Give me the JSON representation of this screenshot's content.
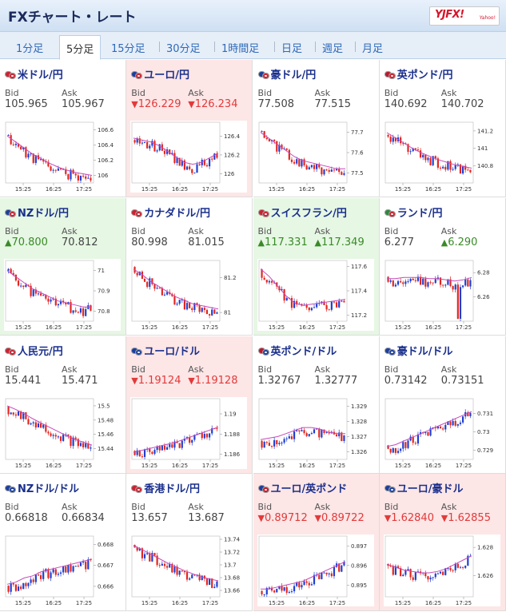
{
  "header": {
    "title": "FXチャート・レート",
    "logo": "YJFX!",
    "logo_sub": "Yahoo!"
  },
  "tabs": [
    "1分足",
    "5分足",
    "15分足",
    "30分足",
    "1時間足",
    "日足",
    "週足",
    "月足"
  ],
  "active_tab": 1,
  "labels": {
    "bid": "Bid",
    "ask": "Ask"
  },
  "colors": {
    "down_text": "#e23a3a",
    "up_text": "#3a8a28",
    "down_bg": "#fde6e6",
    "up_bg": "#e6f7e4",
    "candle_up": "#1f3fd1",
    "candle_down": "#e2261e",
    "ma_line": "#c64ab8"
  },
  "cards": [
    {
      "pair": "米ドル/円",
      "flags": [
        "#d02030",
        "#d02030"
      ],
      "state": "none",
      "bid": "105.965",
      "bid_dir": "none",
      "ask": "105.967",
      "ask_dir": "none",
      "chart_data": {
        "type": "candlestick",
        "x_ticks": [
          "15:25",
          "16:25",
          "17:25"
        ],
        "y_ticks": [
          "106.6",
          "106.4",
          "106.2",
          "106"
        ],
        "ylim": [
          105.9,
          106.7
        ],
        "trend": "down",
        "ma": [
          106.52,
          106.44,
          106.36,
          106.28,
          106.22,
          106.16,
          106.11,
          106.07,
          106.04,
          106.02,
          106.0
        ]
      }
    },
    {
      "pair": "ユーロ/円",
      "flags": [
        "#1a3fa0",
        "#d02030"
      ],
      "state": "down",
      "bid": "126.229",
      "bid_dir": "down",
      "ask": "126.234",
      "ask_dir": "down",
      "chart_data": {
        "type": "candlestick",
        "x_ticks": [
          "15:25",
          "16:25",
          "17:25"
        ],
        "y_ticks": [
          "126.4",
          "126.2",
          "126"
        ],
        "ylim": [
          125.9,
          126.55
        ],
        "trend": "down-up",
        "ma": [
          126.38,
          126.36,
          126.34,
          126.3,
          126.24,
          126.18,
          126.12,
          126.1,
          126.12,
          126.17,
          126.22
        ]
      }
    },
    {
      "pair": "豪ドル/円",
      "flags": [
        "#1a3fa0",
        "#d02030"
      ],
      "state": "none",
      "bid": "77.508",
      "bid_dir": "none",
      "ask": "77.515",
      "ask_dir": "none",
      "chart_data": {
        "type": "candlestick",
        "x_ticks": [
          "15:25",
          "16:25",
          "17:25"
        ],
        "y_ticks": [
          "77.7",
          "77.6",
          "77.5"
        ],
        "ylim": [
          77.45,
          77.75
        ],
        "trend": "down",
        "ma": [
          77.7,
          77.67,
          77.64,
          77.61,
          77.58,
          77.56,
          77.55,
          77.54,
          77.53,
          77.52,
          77.52
        ]
      }
    },
    {
      "pair": "英ポンド/円",
      "flags": [
        "#c0182c",
        "#d02030"
      ],
      "state": "none",
      "bid": "140.692",
      "bid_dir": "none",
      "ask": "140.702",
      "ask_dir": "none",
      "chart_data": {
        "type": "candlestick",
        "x_ticks": [
          "15:25",
          "16:25",
          "17:25"
        ],
        "y_ticks": [
          "141.2",
          "141",
          "140.8"
        ],
        "ylim": [
          140.6,
          141.3
        ],
        "trend": "down",
        "ma": [
          141.18,
          141.12,
          141.06,
          141.0,
          140.95,
          140.91,
          140.87,
          140.84,
          140.81,
          140.79,
          140.77
        ]
      }
    },
    {
      "pair": "NZドル/円",
      "flags": [
        "#1a3fa0",
        "#d02030"
      ],
      "state": "up",
      "bid": "70.800",
      "bid_dir": "up",
      "ask": "70.812",
      "ask_dir": "none",
      "chart_data": {
        "type": "candlestick",
        "x_ticks": [
          "15:25",
          "16:25",
          "17:25"
        ],
        "y_ticks": [
          "71",
          "70.9",
          "70.8"
        ],
        "ylim": [
          70.75,
          71.05
        ],
        "trend": "down",
        "ma": [
          71.0,
          70.97,
          70.94,
          70.91,
          70.89,
          70.87,
          70.85,
          70.84,
          70.83,
          70.82,
          70.82
        ]
      }
    },
    {
      "pair": "カナダドル/円",
      "flags": [
        "#d02030",
        "#d02030"
      ],
      "state": "none",
      "bid": "80.998",
      "bid_dir": "none",
      "ask": "81.015",
      "ask_dir": "none",
      "chart_data": {
        "type": "candlestick",
        "x_ticks": [
          "15:25",
          "16:25",
          "17:25"
        ],
        "y_ticks": [
          "81.2",
          "81"
        ],
        "ylim": [
          80.95,
          81.3
        ],
        "trend": "down",
        "ma": [
          81.25,
          81.22,
          81.18,
          81.15,
          81.12,
          81.09,
          81.07,
          81.05,
          81.04,
          81.03,
          81.02
        ]
      }
    },
    {
      "pair": "スイスフラン/円",
      "flags": [
        "#d02030",
        "#d02030"
      ],
      "state": "up",
      "bid": "117.331",
      "bid_dir": "up",
      "ask": "117.349",
      "ask_dir": "up",
      "chart_data": {
        "type": "candlestick",
        "x_ticks": [
          "15:25",
          "16:25",
          "17:25"
        ],
        "y_ticks": [
          "117.6",
          "117.4",
          "117.2"
        ],
        "ylim": [
          117.15,
          117.65
        ],
        "trend": "down-up",
        "ma": [
          117.58,
          117.52,
          117.44,
          117.36,
          117.3,
          117.28,
          117.29,
          117.3,
          117.31,
          117.32,
          117.33
        ]
      }
    },
    {
      "pair": "ランド/円",
      "flags": [
        "#2a8a3a",
        "#d02030"
      ],
      "state": "none",
      "bid": "6.277",
      "bid_dir": "none",
      "ask": "6.290",
      "ask_dir": "up",
      "chart_data": {
        "type": "candlestick",
        "x_ticks": [
          "15:25",
          "16:25",
          "17:25"
        ],
        "y_ticks": [
          "6.28",
          "6.26"
        ],
        "ylim": [
          6.24,
          6.29
        ],
        "trend": "flat-spike",
        "ma": [
          6.275,
          6.275,
          6.276,
          6.276,
          6.276,
          6.275,
          6.275,
          6.274,
          6.273,
          6.274,
          6.276
        ]
      }
    },
    {
      "pair": "人民元/円",
      "flags": [
        "#d02030",
        "#d02030"
      ],
      "state": "none",
      "bid": "15.441",
      "bid_dir": "none",
      "ask": "15.471",
      "ask_dir": "none",
      "chart_data": {
        "type": "candlestick",
        "x_ticks": [
          "15:25",
          "16:25",
          "17:25"
        ],
        "y_ticks": [
          "15.5",
          "15.48",
          "15.46",
          "15.44"
        ],
        "ylim": [
          15.425,
          15.51
        ],
        "trend": "down",
        "ma": [
          15.5,
          15.495,
          15.489,
          15.482,
          15.476,
          15.47,
          15.464,
          15.458,
          15.453,
          15.449,
          15.445
        ]
      }
    },
    {
      "pair": "ユーロ/ドル",
      "flags": [
        "#1a3fa0",
        "#1a3fa0"
      ],
      "state": "down",
      "bid": "1.19124",
      "bid_dir": "down",
      "ask": "1.19128",
      "ask_dir": "down",
      "chart_data": {
        "type": "candlestick",
        "x_ticks": [
          "15:25",
          "16:25",
          "17:25"
        ],
        "y_ticks": [
          "1.19",
          "1.188",
          "1.186"
        ],
        "ylim": [
          1.1855,
          1.1915
        ],
        "trend": "up",
        "ma": [
          1.1862,
          1.1864,
          1.1866,
          1.1868,
          1.187,
          1.1872,
          1.1875,
          1.1878,
          1.1881,
          1.1884,
          1.1887
        ]
      }
    },
    {
      "pair": "英ポンド/ドル",
      "flags": [
        "#c0182c",
        "#1a3fa0"
      ],
      "state": "none",
      "bid": "1.32767",
      "bid_dir": "none",
      "ask": "1.32777",
      "ask_dir": "none",
      "chart_data": {
        "type": "candlestick",
        "x_ticks": [
          "15:25",
          "16:25",
          "17:25"
        ],
        "y_ticks": [
          "1.329",
          "1.328",
          "1.327",
          "1.326"
        ],
        "ylim": [
          1.3255,
          1.3295
        ],
        "trend": "choppy",
        "ma": [
          1.3268,
          1.3269,
          1.327,
          1.3272,
          1.3274,
          1.3276,
          1.3276,
          1.3275,
          1.3273,
          1.3272,
          1.3272
        ]
      }
    },
    {
      "pair": "豪ドル/ドル",
      "flags": [
        "#1a3fa0",
        "#1a3fa0"
      ],
      "state": "none",
      "bid": "0.73142",
      "bid_dir": "none",
      "ask": "0.73151",
      "ask_dir": "none",
      "chart_data": {
        "type": "candlestick",
        "x_ticks": [
          "15:25",
          "16:25",
          "17:25"
        ],
        "y_ticks": [
          "0.731",
          "0.73",
          "0.729"
        ],
        "ylim": [
          0.7285,
          0.7318
        ],
        "trend": "up",
        "ma": [
          0.7292,
          0.7293,
          0.7295,
          0.7297,
          0.7299,
          0.7301,
          0.7303,
          0.7305,
          0.7307,
          0.7309,
          0.7311
        ]
      }
    },
    {
      "pair": "NZドル/ドル",
      "flags": [
        "#1a3fa0",
        "#1a3fa0"
      ],
      "state": "none",
      "bid": "0.66818",
      "bid_dir": "none",
      "ask": "0.66834",
      "ask_dir": "none",
      "chart_data": {
        "type": "candlestick",
        "x_ticks": [
          "15:25",
          "16:25",
          "17:25"
        ],
        "y_ticks": [
          "0.668",
          "0.667",
          "0.666"
        ],
        "ylim": [
          0.6655,
          0.6684
        ],
        "trend": "up",
        "ma": [
          0.6661,
          0.6662,
          0.6664,
          0.6665,
          0.6667,
          0.6668,
          0.6669,
          0.667,
          0.6671,
          0.6672,
          0.6673
        ]
      }
    },
    {
      "pair": "香港ドル/円",
      "flags": [
        "#d02030",
        "#d02030"
      ],
      "state": "none",
      "bid": "13.657",
      "bid_dir": "none",
      "ask": "13.687",
      "ask_dir": "none",
      "chart_data": {
        "type": "candlestick",
        "x_ticks": [
          "15:25",
          "16:25",
          "17:25"
        ],
        "y_ticks": [
          "13.74",
          "13.72",
          "13.7",
          "13.68",
          "13.66"
        ],
        "ylim": [
          13.65,
          13.745
        ],
        "trend": "down",
        "ma": [
          13.73,
          13.724,
          13.717,
          13.71,
          13.703,
          13.697,
          13.691,
          13.686,
          13.681,
          13.678,
          13.675
        ]
      }
    },
    {
      "pair": "ユーロ/英ポンド",
      "flags": [
        "#1a3fa0",
        "#c0182c"
      ],
      "state": "down",
      "bid": "0.89712",
      "bid_dir": "down",
      "ask": "0.89722",
      "ask_dir": "down",
      "chart_data": {
        "type": "candlestick",
        "x_ticks": [
          "15:25",
          "16:25",
          "17:25"
        ],
        "y_ticks": [
          "0.897",
          "0.896",
          "0.895"
        ],
        "ylim": [
          0.8944,
          0.8975
        ],
        "trend": "up",
        "ma": [
          0.8948,
          0.8948,
          0.8949,
          0.895,
          0.8951,
          0.8952,
          0.8954,
          0.8956,
          0.8958,
          0.896,
          0.8962
        ]
      }
    },
    {
      "pair": "ユーロ/豪ドル",
      "flags": [
        "#1a3fa0",
        "#1a3fa0"
      ],
      "state": "down",
      "bid": "1.62840",
      "bid_dir": "down",
      "ask": "1.62855",
      "ask_dir": "down",
      "chart_data": {
        "type": "candlestick",
        "x_ticks": [
          "15:25",
          "16:25",
          "17:25"
        ],
        "y_ticks": [
          "1.628",
          "1.626"
        ],
        "ylim": [
          1.6245,
          1.6288
        ],
        "trend": "down-up",
        "ma": [
          1.6268,
          1.6266,
          1.6264,
          1.6263,
          1.6262,
          1.6262,
          1.6263,
          1.6265,
          1.6268,
          1.6271,
          1.6274
        ]
      }
    }
  ]
}
